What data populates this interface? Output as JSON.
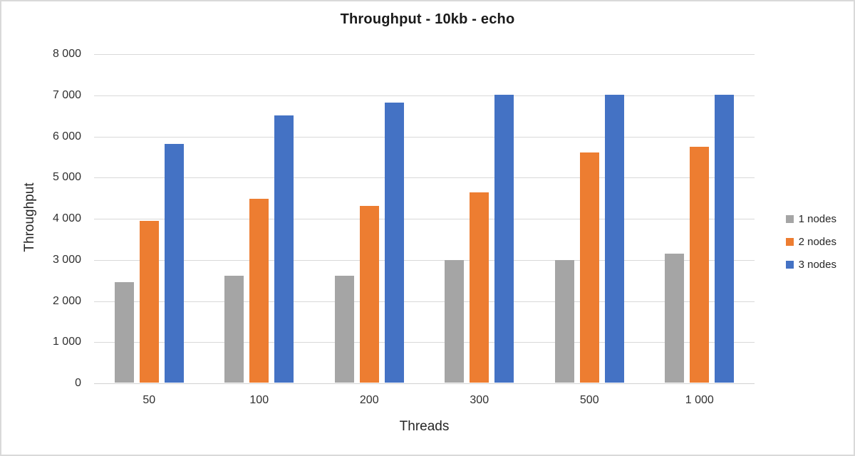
{
  "window": {
    "background_color": "#ffffff",
    "border_color": "#d9d9d9"
  },
  "chart_data": {
    "type": "bar",
    "title": "Throughput - 10kb - echo",
    "xlabel": "Threads",
    "ylabel": "Throughput",
    "categories": [
      "50",
      "100",
      "200",
      "300",
      "500",
      "1 000"
    ],
    "series": [
      {
        "name": "1 nodes",
        "color": "#a5a5a5",
        "values": [
          2450,
          2600,
          2600,
          2970,
          2970,
          3140
        ]
      },
      {
        "name": "2 nodes",
        "color": "#ed7d31",
        "values": [
          3930,
          4470,
          4300,
          4620,
          5600,
          5740
        ]
      },
      {
        "name": "3 nodes",
        "color": "#4472c4",
        "values": [
          5800,
          6500,
          6800,
          7000,
          7000,
          7000
        ]
      }
    ],
    "ylim": [
      0,
      8000
    ],
    "y_tick_step": 1000,
    "y_tick_labels": [
      "0",
      "1 000",
      "2 000",
      "3 000",
      "4 000",
      "5 000",
      "6 000",
      "7 000",
      "8 000"
    ],
    "grid": true,
    "gridline_color": "#d9d9d9",
    "axisline_color": "#d2d2d2",
    "legend_position": "right"
  }
}
